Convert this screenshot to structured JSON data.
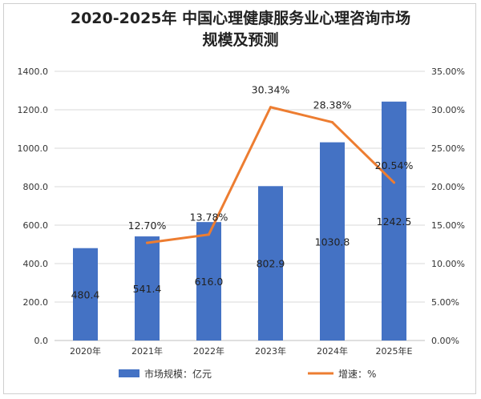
{
  "title_line1": "2020-2025年  中国心理健康服务业心理咨询市场",
  "title_line2": "规模及预测",
  "colors": {
    "bar": "#4472C4",
    "line": "#ED7D31",
    "grid": "#d9d9d9"
  },
  "chart_data": {
    "type": "bar",
    "categories": [
      "2020年",
      "2021年",
      "2022年",
      "2023年",
      "2024年",
      "2025年E"
    ],
    "series": [
      {
        "name": "市场规模：亿元",
        "type": "bar",
        "axis": "left",
        "values": [
          480.4,
          541.4,
          616.0,
          802.9,
          1030.8,
          1242.5
        ],
        "labels": [
          "480.4",
          "541.4",
          "616.0",
          "802.9",
          "1030.8",
          "1242.5"
        ]
      },
      {
        "name": "增速：%",
        "type": "line",
        "axis": "right",
        "values": [
          null,
          12.7,
          13.78,
          30.34,
          28.38,
          20.54
        ],
        "labels": [
          "",
          "12.70%",
          "13.78%",
          "30.34%",
          "28.38%",
          "20.54%"
        ]
      }
    ],
    "y_left": {
      "range": [
        0,
        1400
      ],
      "ticks": [
        0,
        200,
        400,
        600,
        800,
        1000,
        1200,
        1400
      ],
      "tick_labels": [
        "0.0",
        "200.0",
        "400.0",
        "600.0",
        "800.0",
        "1000.0",
        "1200.0",
        "1400.0"
      ]
    },
    "y_right": {
      "range": [
        0,
        35
      ],
      "ticks": [
        0,
        5,
        10,
        15,
        20,
        25,
        30,
        35
      ],
      "tick_labels": [
        "0.00%",
        "5.00%",
        "10.00%",
        "15.00%",
        "20.00%",
        "25.00%",
        "30.00%",
        "35.00%"
      ]
    },
    "grid": true,
    "legend_position": "bottom"
  }
}
